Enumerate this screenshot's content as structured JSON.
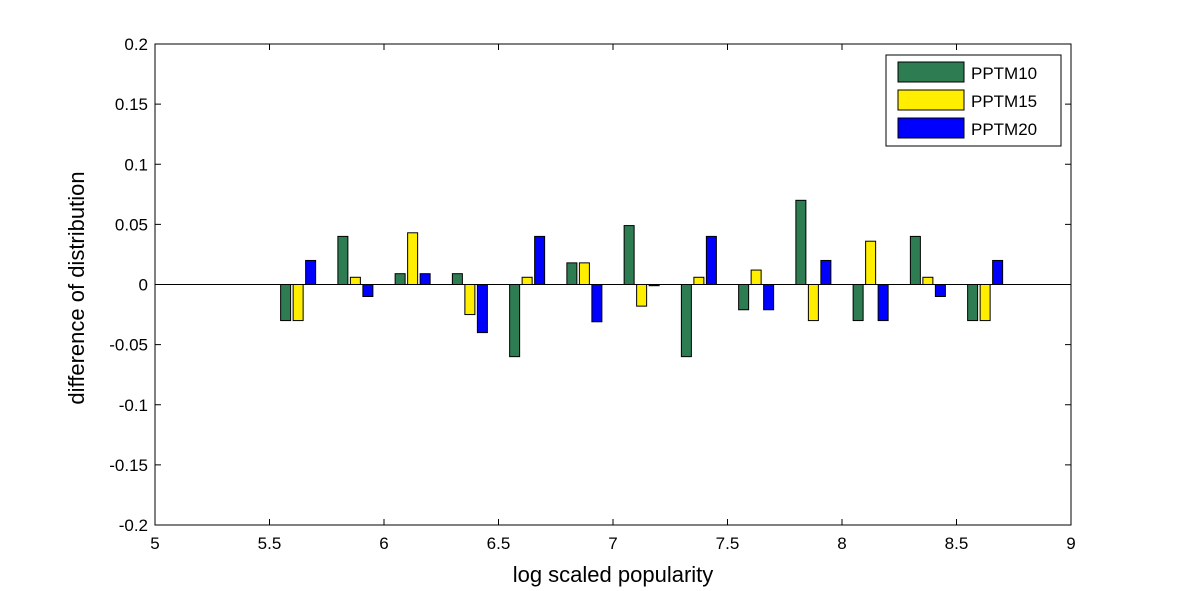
{
  "chart_data": {
    "type": "bar",
    "xlabel": "log scaled popularity",
    "ylabel": "difference of distribution",
    "xlim": [
      5,
      9
    ],
    "ylim": [
      -0.2,
      0.2
    ],
    "xticks": [
      "5",
      "5.5",
      "6",
      "6.5",
      "7",
      "7.5",
      "8",
      "8.5",
      "9"
    ],
    "yticks": [
      "-0.2",
      "-0.15",
      "-0.1",
      "-0.05",
      "0",
      "0.05",
      "0.1",
      "0.15",
      "0.2"
    ],
    "grid": false,
    "legend_position": "top-right",
    "x": [
      5.625,
      5.875,
      6.125,
      6.375,
      6.625,
      6.875,
      7.125,
      7.375,
      7.625,
      7.875,
      8.125,
      8.375,
      8.625
    ],
    "series": [
      {
        "name": "PPTM10",
        "color": "#2e7d52",
        "values": [
          -0.03,
          0.04,
          0.009,
          0.009,
          -0.06,
          0.018,
          0.049,
          -0.06,
          -0.021,
          0.07,
          -0.03,
          0.04,
          -0.03
        ]
      },
      {
        "name": "PPTM15",
        "color": "#ffee00",
        "values": [
          -0.03,
          0.006,
          0.043,
          -0.025,
          0.006,
          0.018,
          -0.018,
          0.006,
          0.012,
          -0.03,
          0.036,
          0.006,
          -0.03
        ]
      },
      {
        "name": "PPTM20",
        "color": "#0000ff",
        "values": [
          0.02,
          -0.01,
          0.009,
          -0.04,
          0.04,
          -0.031,
          -0.001,
          0.04,
          -0.021,
          0.02,
          -0.03,
          -0.01,
          0.02
        ]
      }
    ]
  }
}
